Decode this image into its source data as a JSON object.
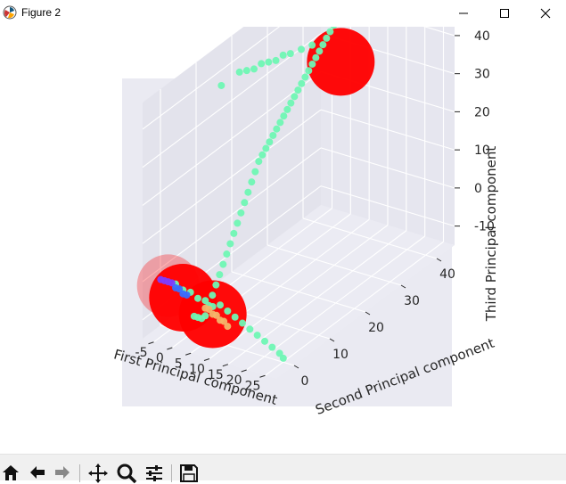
{
  "window": {
    "title": "Figure 2",
    "app_icon": "matplotlib-icon",
    "controls": [
      "minimize-icon",
      "maximize-icon",
      "close-icon"
    ]
  },
  "toolbar": {
    "buttons": [
      "home-icon",
      "back-icon",
      "forward-icon",
      "pan-icon",
      "zoom-icon",
      "configure-subplots-icon",
      "save-icon"
    ]
  },
  "chart_data": {
    "type": "scatter",
    "projection": "3d",
    "title": "",
    "xlabel": "First Principal  component",
    "ylabel": "Second Principal  component",
    "zlabel": "Third Principal  component",
    "x_ticks": [
      "-5",
      "0",
      "5",
      "10",
      "15",
      "20",
      "25"
    ],
    "y_ticks": [
      "0",
      "10",
      "20",
      "30",
      "40"
    ],
    "z_ticks": [
      "-10",
      "0",
      "10",
      "20",
      "30",
      "40"
    ],
    "xlim": [
      -8,
      28
    ],
    "ylim": [
      -5,
      45
    ],
    "zlim": [
      -15,
      47
    ],
    "grid": true,
    "pane_color": "#eaeaf2",
    "colors": {
      "centroid": "#ff0000",
      "main_cluster": "#6ff7b4",
      "purple_cluster": "#7d3cff",
      "blue_cluster": "#3a6dff",
      "orange_cluster": "#f4b56a"
    },
    "centroids": [
      {
        "x": 6,
        "y": 36,
        "z": 33
      },
      {
        "x": -4,
        "y": -2,
        "z": -2
      },
      {
        "x": 0,
        "y": -2,
        "z": -4
      },
      {
        "x": 8,
        "y": -2,
        "z": -6
      }
    ],
    "series": [
      {
        "color": "#6ff7b4",
        "points": [
          [
            6,
            34,
            44
          ],
          [
            6,
            33,
            43
          ],
          [
            6,
            32,
            42
          ],
          [
            6,
            31,
            41
          ],
          [
            6,
            30,
            40
          ],
          [
            6,
            29,
            39
          ],
          [
            6,
            28,
            38
          ],
          [
            6,
            27,
            37
          ],
          [
            6,
            26,
            36
          ],
          [
            6,
            25,
            35
          ],
          [
            6,
            24,
            34
          ],
          [
            6,
            23,
            33
          ],
          [
            6,
            22,
            32
          ],
          [
            6,
            21,
            31
          ],
          [
            6,
            20,
            30
          ],
          [
            6,
            19,
            29
          ],
          [
            6,
            18,
            28
          ],
          [
            6,
            17,
            27
          ],
          [
            6,
            16,
            26
          ],
          [
            6,
            15,
            25
          ],
          [
            6,
            14,
            24
          ],
          [
            6,
            13,
            23
          ],
          [
            6,
            12,
            21
          ],
          [
            6,
            11,
            19
          ],
          [
            6,
            10,
            17
          ],
          [
            6,
            9,
            15
          ],
          [
            6,
            8,
            13
          ],
          [
            6,
            7,
            11
          ],
          [
            6,
            6,
            9
          ],
          [
            6,
            5,
            7
          ],
          [
            6,
            4,
            5
          ],
          [
            6,
            3,
            3
          ],
          [
            6,
            2,
            1
          ],
          [
            6,
            1,
            -1
          ],
          [
            6,
            0,
            -3
          ],
          [
            6,
            -1,
            -5
          ],
          [
            6,
            -2,
            -7
          ],
          [
            5,
            -2,
            -8
          ],
          [
            4,
            -2,
            -8
          ],
          [
            3,
            -2,
            -8
          ],
          [
            -4,
            18,
            40
          ],
          [
            -3,
            19,
            40
          ],
          [
            -2,
            20,
            40
          ],
          [
            -1,
            21,
            41
          ],
          [
            0,
            22,
            41
          ],
          [
            1,
            23,
            41
          ],
          [
            2,
            24,
            42
          ],
          [
            3,
            25,
            42
          ],
          [
            4,
            27,
            42
          ],
          [
            5,
            29,
            42
          ],
          [
            -6,
            15,
            38
          ],
          [
            10,
            -2,
            -3
          ],
          [
            12,
            -2,
            -4
          ],
          [
            14,
            -2,
            -5
          ],
          [
            16,
            -2,
            -6
          ],
          [
            18,
            -2,
            -7
          ],
          [
            20,
            -2,
            -8
          ],
          [
            22,
            -2,
            -9
          ],
          [
            24,
            -2,
            -10
          ],
          [
            26,
            -2,
            -11
          ],
          [
            27,
            -2,
            -12
          ],
          [
            -2,
            -2,
            -1
          ],
          [
            0,
            -2,
            -2
          ],
          [
            2,
            -2,
            -2
          ],
          [
            4,
            -2,
            -3
          ],
          [
            6,
            -2,
            -3
          ],
          [
            8,
            -2,
            -4
          ]
        ]
      },
      {
        "color": "#7d3cff",
        "points": [
          [
            -6,
            -2,
            -1
          ],
          [
            -5,
            -2,
            -1
          ],
          [
            -4,
            -2,
            -1
          ],
          [
            -3,
            -2,
            -1
          ]
        ]
      },
      {
        "color": "#3a6dff",
        "points": [
          [
            -2,
            -2,
            -2
          ],
          [
            -1,
            -2,
            -2
          ],
          [
            0,
            -2,
            -3
          ],
          [
            1,
            -2,
            -3
          ]
        ]
      },
      {
        "color": "#f4b56a",
        "points": [
          [
            6,
            -2,
            -5
          ],
          [
            7,
            -2,
            -5
          ],
          [
            8,
            -2,
            -6
          ],
          [
            9,
            -2,
            -6
          ],
          [
            10,
            -2,
            -7
          ],
          [
            11,
            -2,
            -7
          ],
          [
            12,
            -2,
            -8
          ]
        ]
      }
    ]
  }
}
